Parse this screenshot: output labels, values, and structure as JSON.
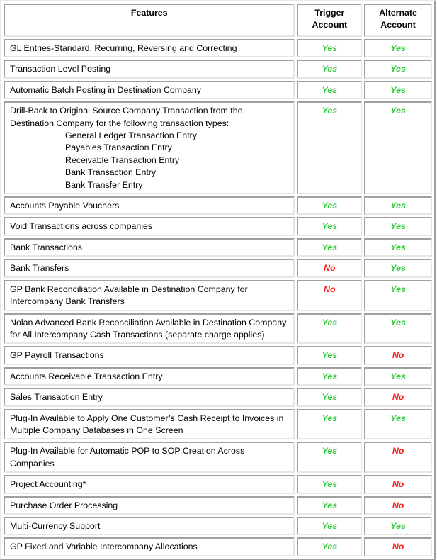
{
  "headers": {
    "features": "Features",
    "trigger": "Trigger Account",
    "alternate": "Alternate Account"
  },
  "colors": {
    "yes": "#2fcc3a",
    "no": "#ff1a1a"
  },
  "rows": [
    {
      "feature": "GL Entries-Standard, Recurring, Reversing and Correcting",
      "trigger": "Yes",
      "alternate": "Yes"
    },
    {
      "feature": "Transaction Level Posting",
      "trigger": "Yes",
      "alternate": "Yes"
    },
    {
      "feature": "Automatic Batch Posting in Destination Company",
      "trigger": "Yes",
      "alternate": "Yes"
    },
    {
      "feature": "Drill-Back to Original Source Company Transaction from the Destination Company for the following transaction types:",
      "sub": [
        "General Ledger Transaction Entry",
        "Payables Transaction Entry",
        "Receivable Transaction Entry",
        "Bank Transaction Entry",
        "Bank Transfer Entry"
      ],
      "trigger": "Yes",
      "alternate": "Yes"
    },
    {
      "feature": "Accounts Payable Vouchers",
      "trigger": "Yes",
      "alternate": "Yes"
    },
    {
      "feature": "Void Transactions across companies",
      "trigger": "Yes",
      "alternate": "Yes"
    },
    {
      "feature": "Bank Transactions",
      "trigger": "Yes",
      "alternate": "Yes"
    },
    {
      "feature": "Bank Transfers",
      "trigger": "No",
      "alternate": "Yes"
    },
    {
      "feature": "GP Bank Reconciliation Available in Destination Company for Intercompany Bank Transfers",
      "trigger": "No",
      "alternate": "Yes"
    },
    {
      "feature": "Nolan Advanced Bank Reconciliation Available in Destination Company for All Intercompany Cash Transactions (separate charge applies)",
      "trigger": "Yes",
      "alternate": "Yes"
    },
    {
      "feature": "GP Payroll Transactions",
      "trigger": "Yes",
      "alternate": "No"
    },
    {
      "feature": "Accounts Receivable Transaction Entry",
      "trigger": "Yes",
      "alternate": "Yes"
    },
    {
      "feature": "Sales Transaction Entry",
      "trigger": "Yes",
      "alternate": "No"
    },
    {
      "feature": "Plug-In Available to Apply One Customer’s Cash Receipt to Invoices in Multiple Company Databases in One Screen",
      "trigger": "Yes",
      "alternate": "Yes"
    },
    {
      "feature": "Plug-In Available for Automatic POP to SOP Creation Across Companies",
      "trigger": "Yes",
      "alternate": "No"
    },
    {
      "feature": "Project Accounting*",
      "trigger": "Yes",
      "alternate": "No"
    },
    {
      "feature": "Purchase Order Processing",
      "trigger": "Yes",
      "alternate": "No"
    },
    {
      "feature": "Multi-Currency Support",
      "trigger": "Yes",
      "alternate": "Yes"
    },
    {
      "feature": "GP Fixed and Variable Intercompany Allocations",
      "trigger": "Yes",
      "alternate": "No"
    }
  ]
}
